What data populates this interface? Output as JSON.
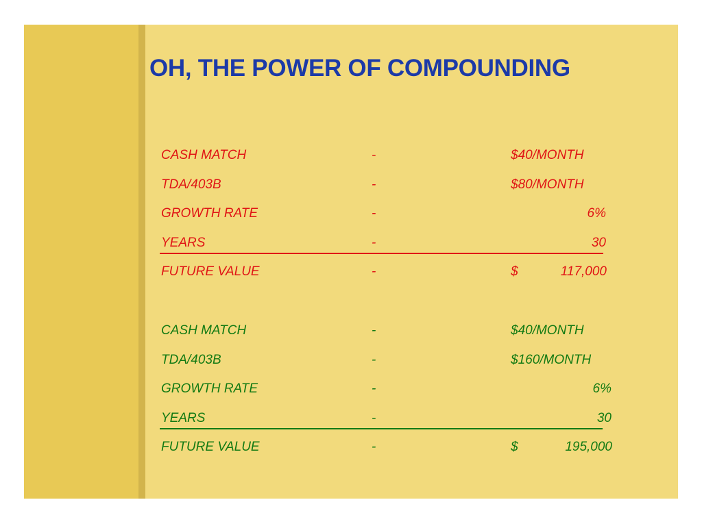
{
  "slide": {
    "title": "OH, THE POWER OF COMPOUNDING",
    "colors": {
      "background": "#f2da7c",
      "sidebar": "#e8c955",
      "title": "#1c3aa8",
      "scenario1": "#e01515",
      "scenario2": "#137a13"
    },
    "scenario1": {
      "rows": [
        {
          "label": "CASH MATCH",
          "dash": "-",
          "value": "$40/MONTH"
        },
        {
          "label": "TDA/403B",
          "dash": "-",
          "value": "$80/MONTH"
        },
        {
          "label": "GROWTH RATE",
          "dash": "-",
          "value": "6%"
        },
        {
          "label": "YEARS",
          "dash": "-",
          "value": "30"
        }
      ],
      "future_value": {
        "label": "FUTURE VALUE",
        "dash": "-",
        "currency": "$",
        "amount": "117,000"
      }
    },
    "scenario2": {
      "rows": [
        {
          "label": "CASH MATCH",
          "dash": "-",
          "value": "$40/MONTH"
        },
        {
          "label": "TDA/403B",
          "dash": "-",
          "value": "$160/MONTH"
        },
        {
          "label": "GROWTH RATE",
          "dash": "-",
          "value": "6%"
        },
        {
          "label": "YEARS",
          "dash": "-",
          "value": "30"
        }
      ],
      "future_value": {
        "label": "FUTURE VALUE",
        "dash": "-",
        "currency": "$",
        "amount": "195,000"
      }
    }
  }
}
